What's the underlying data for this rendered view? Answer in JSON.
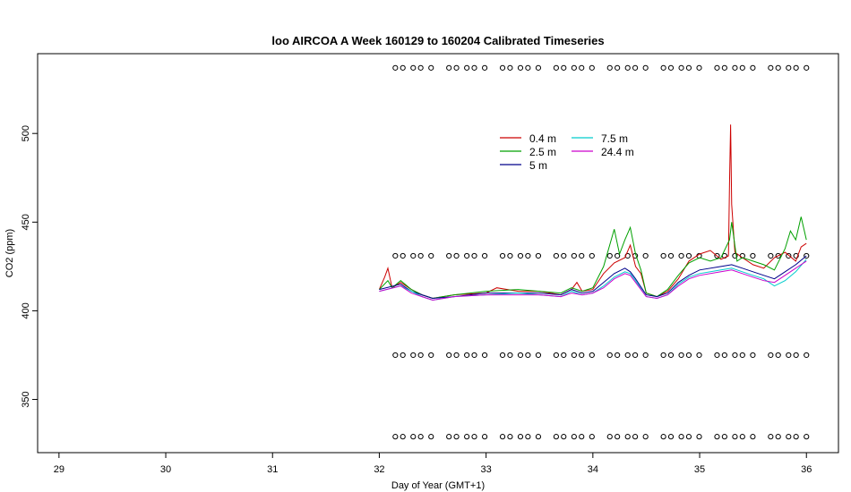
{
  "chart_data": {
    "type": "line",
    "title": "loo AIRCOA A  Week 160129 to 160204  Calibrated Timeseries",
    "xlabel": "Day of Year (GMT+1)",
    "ylabel": "CO2 (ppm)",
    "xlim": [
      28.8,
      36.3
    ],
    "ylim": [
      320,
      545
    ],
    "xticks": [
      29,
      30,
      31,
      32,
      33,
      34,
      35,
      36
    ],
    "yticks": [
      350,
      400,
      450,
      500
    ],
    "grid": false,
    "legend_placement": "top-center",
    "series": [
      {
        "name": "0.4 m",
        "color": "#cc0000",
        "points": [
          [
            32.0,
            412
          ],
          [
            32.05,
            419
          ],
          [
            32.08,
            424
          ],
          [
            32.12,
            413
          ],
          [
            32.2,
            416
          ],
          [
            32.3,
            412
          ],
          [
            32.4,
            409
          ],
          [
            32.5,
            407
          ],
          [
            32.7,
            409
          ],
          [
            33.0,
            410
          ],
          [
            33.1,
            413
          ],
          [
            33.3,
            411
          ],
          [
            33.5,
            411
          ],
          [
            33.7,
            409
          ],
          [
            33.8,
            412
          ],
          [
            33.85,
            416
          ],
          [
            33.9,
            411
          ],
          [
            34.0,
            412
          ],
          [
            34.1,
            421
          ],
          [
            34.2,
            427
          ],
          [
            34.3,
            430
          ],
          [
            34.35,
            437
          ],
          [
            34.4,
            425
          ],
          [
            34.45,
            421
          ],
          [
            34.5,
            410
          ],
          [
            34.6,
            408
          ],
          [
            34.7,
            411
          ],
          [
            34.8,
            418
          ],
          [
            34.9,
            428
          ],
          [
            35.0,
            432
          ],
          [
            35.1,
            434
          ],
          [
            35.2,
            429
          ],
          [
            35.27,
            431
          ],
          [
            35.28,
            472
          ],
          [
            35.29,
            505
          ],
          [
            35.3,
            460
          ],
          [
            35.33,
            433
          ],
          [
            35.4,
            430
          ],
          [
            35.5,
            426
          ],
          [
            35.6,
            424
          ],
          [
            35.7,
            430
          ],
          [
            35.8,
            433
          ],
          [
            35.9,
            428
          ],
          [
            35.95,
            436
          ],
          [
            36.0,
            438
          ]
        ]
      },
      {
        "name": "2.5 m",
        "color": "#00a000",
        "points": [
          [
            32.0,
            412
          ],
          [
            32.08,
            417
          ],
          [
            32.12,
            413
          ],
          [
            32.2,
            417
          ],
          [
            32.3,
            412
          ],
          [
            32.4,
            409
          ],
          [
            32.5,
            407
          ],
          [
            32.7,
            409
          ],
          [
            33.0,
            411
          ],
          [
            33.3,
            412
          ],
          [
            33.5,
            411
          ],
          [
            33.7,
            410
          ],
          [
            33.8,
            413
          ],
          [
            33.9,
            411
          ],
          [
            34.0,
            413
          ],
          [
            34.1,
            425
          ],
          [
            34.2,
            446
          ],
          [
            34.25,
            432
          ],
          [
            34.3,
            440
          ],
          [
            34.35,
            447
          ],
          [
            34.4,
            432
          ],
          [
            34.45,
            423
          ],
          [
            34.5,
            410
          ],
          [
            34.6,
            408
          ],
          [
            34.7,
            412
          ],
          [
            34.8,
            420
          ],
          [
            34.9,
            427
          ],
          [
            35.0,
            430
          ],
          [
            35.1,
            428
          ],
          [
            35.2,
            430
          ],
          [
            35.28,
            440
          ],
          [
            35.3,
            450
          ],
          [
            35.35,
            428
          ],
          [
            35.4,
            430
          ],
          [
            35.5,
            428
          ],
          [
            35.6,
            426
          ],
          [
            35.7,
            423
          ],
          [
            35.8,
            435
          ],
          [
            35.85,
            445
          ],
          [
            35.9,
            440
          ],
          [
            35.95,
            453
          ],
          [
            36.0,
            440
          ]
        ]
      },
      {
        "name": "5 m",
        "color": "#00008b",
        "points": [
          [
            32.0,
            412
          ],
          [
            32.2,
            415
          ],
          [
            32.3,
            411
          ],
          [
            32.4,
            409
          ],
          [
            32.5,
            407
          ],
          [
            32.7,
            408
          ],
          [
            33.0,
            410
          ],
          [
            33.3,
            410
          ],
          [
            33.5,
            410
          ],
          [
            33.7,
            409
          ],
          [
            33.8,
            412
          ],
          [
            33.9,
            410
          ],
          [
            34.0,
            411
          ],
          [
            34.1,
            416
          ],
          [
            34.2,
            421
          ],
          [
            34.3,
            424
          ],
          [
            34.35,
            422
          ],
          [
            34.4,
            418
          ],
          [
            34.5,
            409
          ],
          [
            34.6,
            408
          ],
          [
            34.7,
            410
          ],
          [
            34.8,
            416
          ],
          [
            34.9,
            420
          ],
          [
            35.0,
            423
          ],
          [
            35.2,
            425
          ],
          [
            35.3,
            426
          ],
          [
            35.4,
            424
          ],
          [
            35.5,
            422
          ],
          [
            35.6,
            420
          ],
          [
            35.7,
            418
          ],
          [
            35.8,
            422
          ],
          [
            35.9,
            426
          ],
          [
            36.0,
            431
          ]
        ]
      },
      {
        "name": "7.5 m",
        "color": "#00cccc",
        "points": [
          [
            32.0,
            411
          ],
          [
            32.2,
            414
          ],
          [
            32.3,
            411
          ],
          [
            32.4,
            408
          ],
          [
            32.5,
            406
          ],
          [
            32.7,
            408
          ],
          [
            33.0,
            409
          ],
          [
            33.3,
            410
          ],
          [
            33.5,
            409
          ],
          [
            33.7,
            408
          ],
          [
            33.8,
            411
          ],
          [
            33.9,
            409
          ],
          [
            34.0,
            410
          ],
          [
            34.1,
            414
          ],
          [
            34.2,
            419
          ],
          [
            34.3,
            422
          ],
          [
            34.35,
            421
          ],
          [
            34.4,
            417
          ],
          [
            34.5,
            408
          ],
          [
            34.6,
            407
          ],
          [
            34.7,
            409
          ],
          [
            34.8,
            415
          ],
          [
            34.9,
            419
          ],
          [
            35.0,
            421
          ],
          [
            35.2,
            423
          ],
          [
            35.3,
            424
          ],
          [
            35.4,
            422
          ],
          [
            35.5,
            420
          ],
          [
            35.6,
            418
          ],
          [
            35.7,
            414
          ],
          [
            35.8,
            417
          ],
          [
            35.9,
            422
          ],
          [
            36.0,
            429
          ]
        ]
      },
      {
        "name": "24.4 m",
        "color": "#cc00cc",
        "points": [
          [
            32.0,
            411
          ],
          [
            32.2,
            414
          ],
          [
            32.3,
            410
          ],
          [
            32.4,
            408
          ],
          [
            32.5,
            406
          ],
          [
            32.7,
            408
          ],
          [
            33.0,
            409
          ],
          [
            33.3,
            409
          ],
          [
            33.5,
            409
          ],
          [
            33.7,
            408
          ],
          [
            33.8,
            410
          ],
          [
            33.9,
            409
          ],
          [
            34.0,
            410
          ],
          [
            34.1,
            413
          ],
          [
            34.2,
            418
          ],
          [
            34.3,
            421
          ],
          [
            34.35,
            420
          ],
          [
            34.4,
            416
          ],
          [
            34.5,
            408
          ],
          [
            34.6,
            407
          ],
          [
            34.7,
            409
          ],
          [
            34.8,
            414
          ],
          [
            34.9,
            418
          ],
          [
            35.0,
            420
          ],
          [
            35.2,
            422
          ],
          [
            35.3,
            423
          ],
          [
            35.4,
            421
          ],
          [
            35.5,
            419
          ],
          [
            35.6,
            417
          ],
          [
            35.7,
            416
          ],
          [
            35.8,
            420
          ],
          [
            35.9,
            424
          ],
          [
            36.0,
            428
          ]
        ]
      }
    ],
    "marker_rows": [
      537,
      431,
      375,
      329
    ],
    "marker_x_range": [
      32.15,
      36.0
    ]
  }
}
